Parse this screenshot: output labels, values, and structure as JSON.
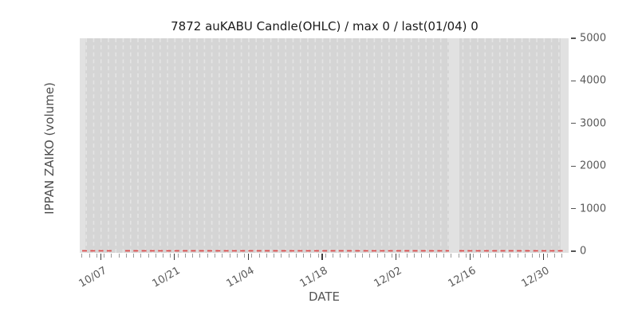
{
  "title": "7872 auKABU Candle(OHLC) / max 0 / last(01/04) 0",
  "axes": {
    "x_label": "DATE",
    "y_label": "IPPAN ZAIKO (volume)"
  },
  "chart_data": {
    "type": "line",
    "title": "7872 auKABU Candle(OHLC) / max 0 / last(01/04) 0",
    "xlabel": "DATE",
    "ylabel": "IPPAN ZAIKO (volume)",
    "x_tick_labels": [
      "10/07",
      "10/21",
      "11/04",
      "11/18",
      "12/02",
      "12/16",
      "12/30"
    ],
    "y_tick_labels": [
      "0",
      "1000",
      "2000",
      "3000",
      "4000",
      "5000"
    ],
    "ylim": [
      0,
      5000
    ],
    "xrange_note": "daily minor ticks from 10/07 through early 01, major tick every 14 days",
    "series": [
      {
        "name": "IPPAN ZAIKO (volume)",
        "color": "#dd4b4b",
        "line_style": "dashed",
        "x": [
          "10/07",
          "10/21",
          "11/04",
          "11/18",
          "12/02",
          "12/16",
          "12/30",
          "01/04"
        ],
        "values": [
          0,
          0,
          0,
          0,
          0,
          0,
          0,
          0
        ]
      }
    ],
    "annotations": {
      "max": 0,
      "last_date": "01/04",
      "last_value": 0
    },
    "legend": "none",
    "grid": "vertical dashed per-day gridlines on gray panel, no horizontal gridlines, no axis spines"
  },
  "colors": {
    "plot_bg": "#d5d5d5",
    "gridline": "#e4e4e4",
    "gap_band": "#e1e1e1",
    "zero_line": "#dd4b4b",
    "tick_label": "#595959",
    "title_text": "#1b1b1b"
  }
}
